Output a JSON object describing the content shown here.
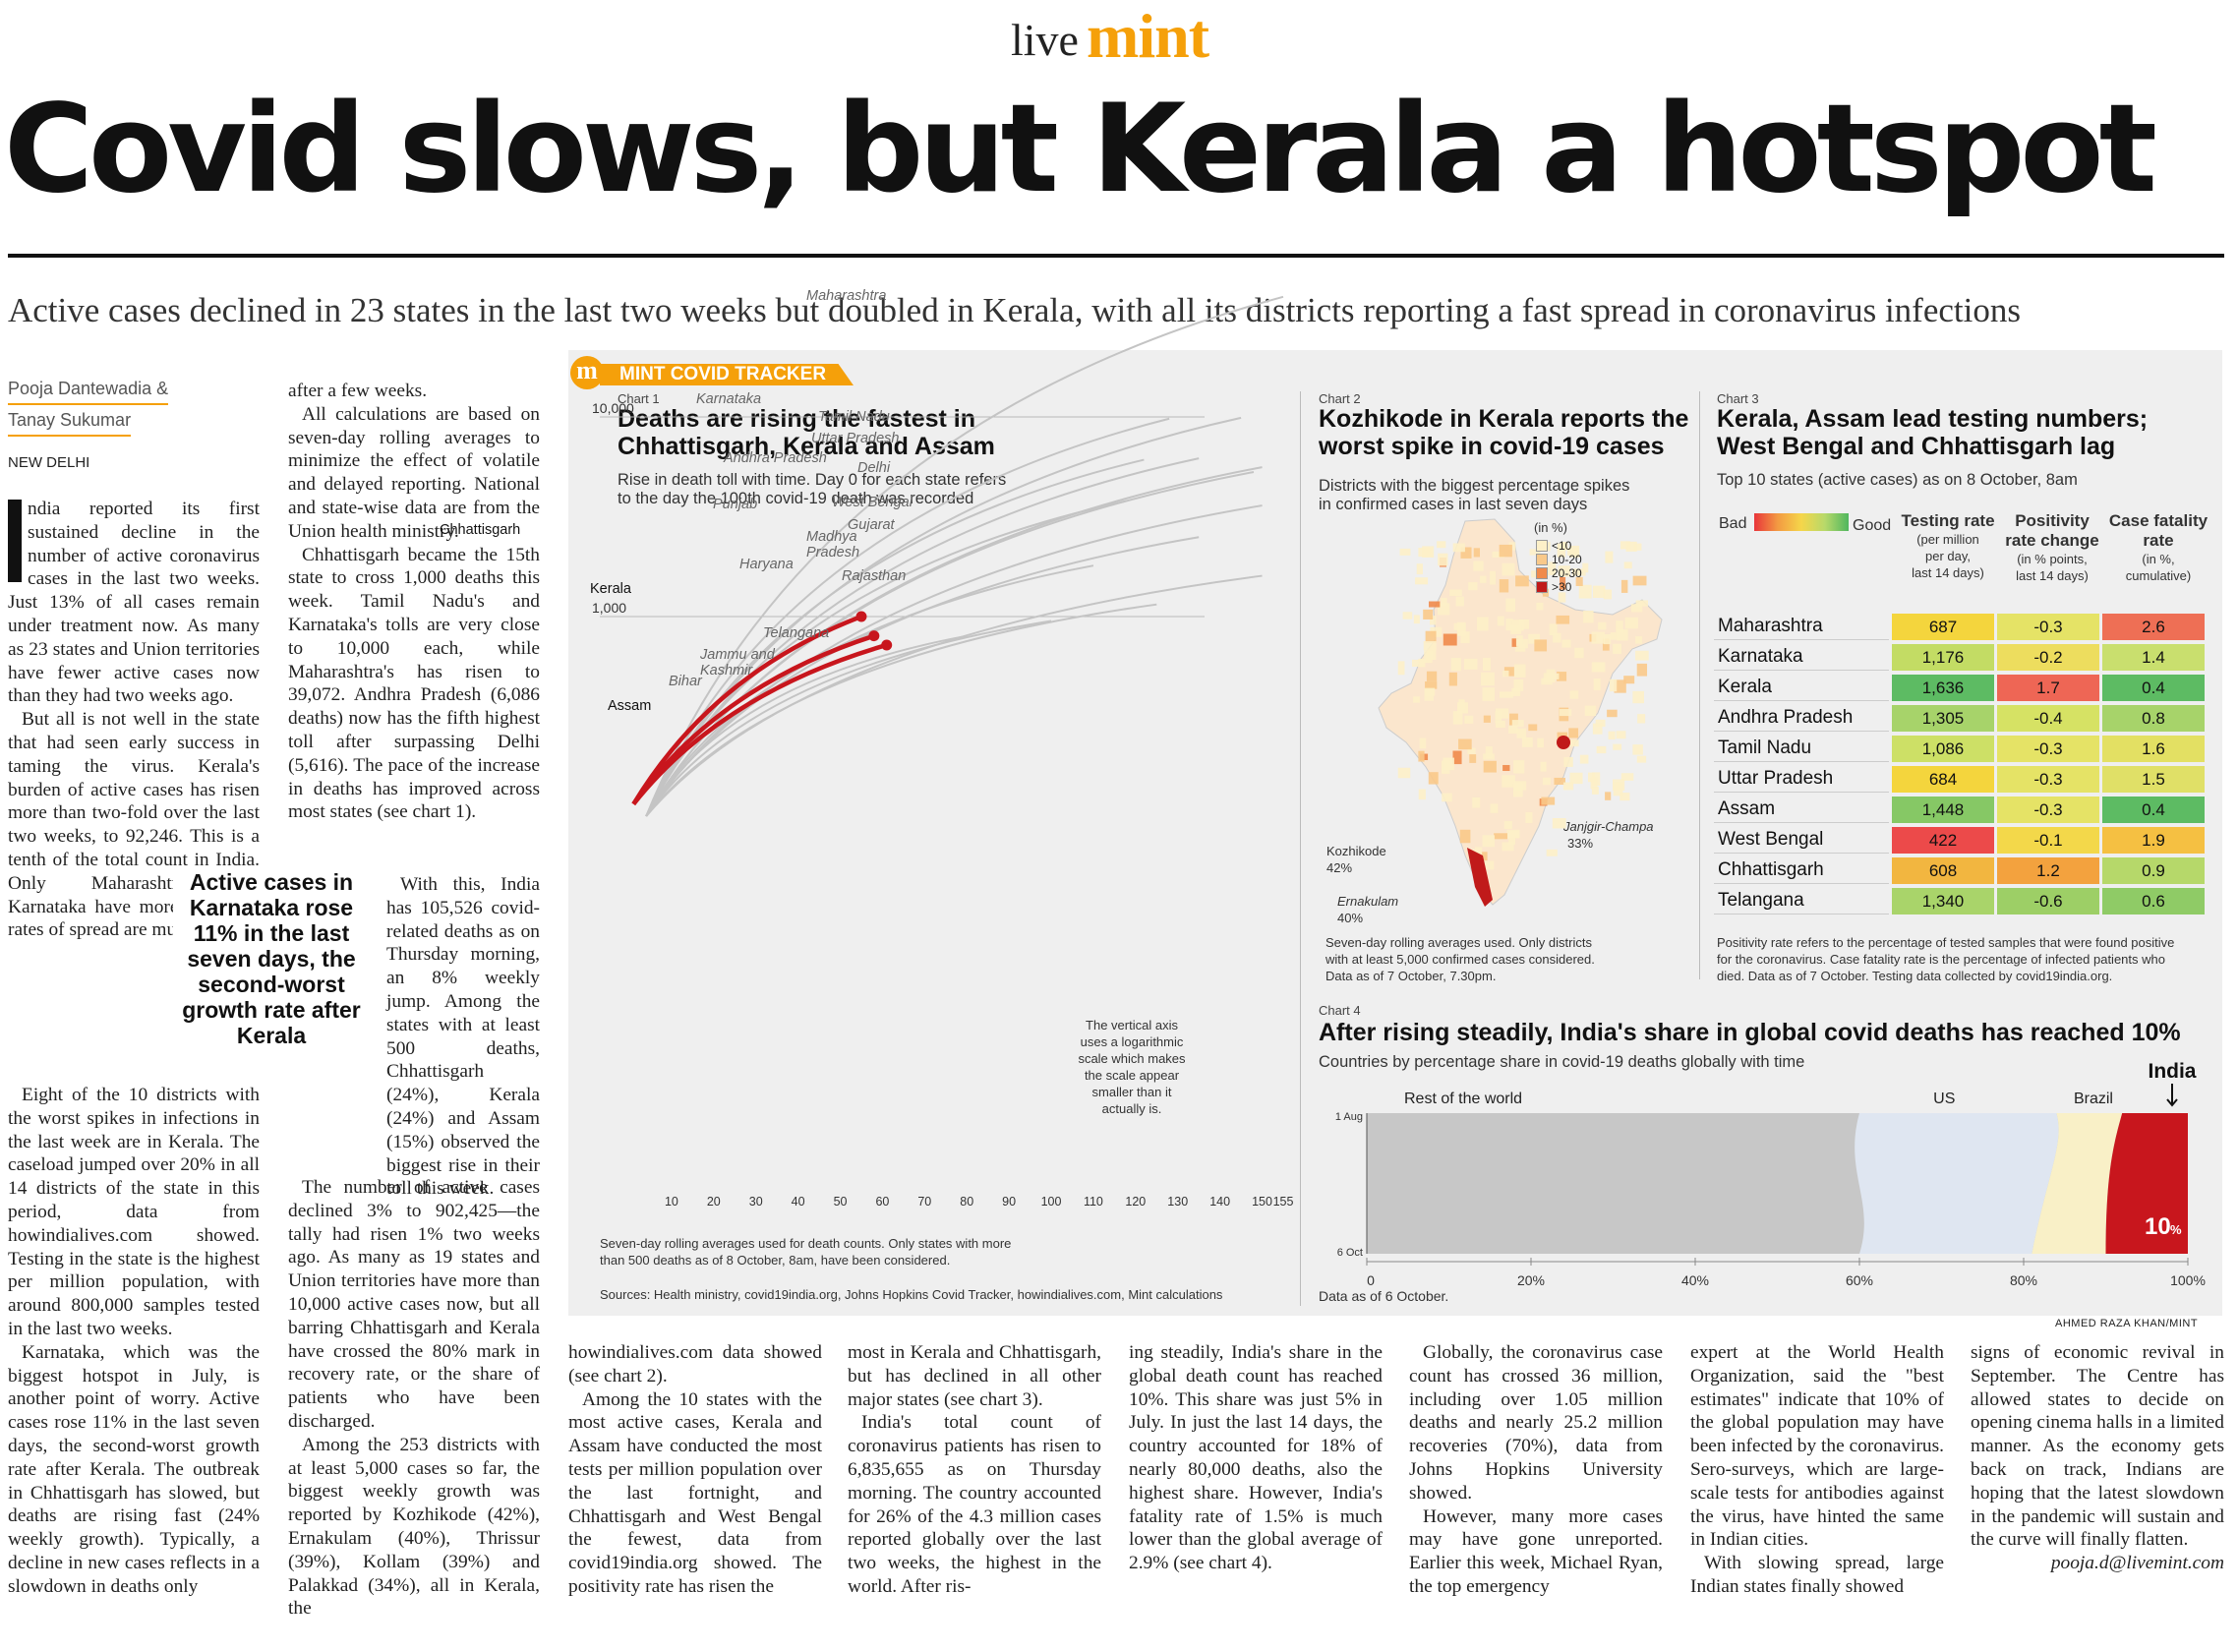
{
  "masthead": {
    "live": "live",
    "mint": "mint"
  },
  "headline": "Covid slows, but Kerala a hotspot",
  "deck": "Active cases declined in 23 states in the last two weeks but doubled in Kerala, with all its districts reporting a fast spread in coronavirus infections",
  "byline": {
    "author1": "Pooja Dantewadia &",
    "author2": "Tanay Sukumar",
    "dateline": "NEW DELHI"
  },
  "pull_quote": "Active cases in Karnataka rose 11% in the last seven days, the second-worst growth rate after Kerala",
  "tracker_label": "MINT COVID TRACKER",
  "chart1": {
    "label": "Chart 1",
    "title1": "Deaths are rising the fastest in",
    "title2": "Chhattisgarh, Kerala and Assam",
    "sub1": "Rise in death toll with time. Day 0 for each state refers",
    "sub2": "to the day the 100th covid-19 death was recorded",
    "note1": "The vertical axis",
    "note2": "uses a logarithmic",
    "note3": "scale which makes",
    "note4": "the scale appear",
    "note5": "smaller than it",
    "note6": "actually is.",
    "foot1": "Seven-day rolling averages used for death counts. Only states with more",
    "foot2": "than 500 deaths as of 8 October, 8am, have been considered.",
    "sources": "Sources: Health ministry, covid19india.org, Johns Hopkins Covid Tracker, howindialives.com, Mint calculations"
  },
  "chart2": {
    "label": "Chart 2",
    "title1": "Kozhikode in Kerala reports the",
    "title2": "worst spike in covid-19 cases",
    "sub1": "Districts with the biggest percentage spikes",
    "sub2": "in confirmed cases in last seven days",
    "legend_title": "(in %)",
    "legend": [
      {
        "label": "<10",
        "color": "#fdf0c8"
      },
      {
        "label": "10-20",
        "color": "#f9c98a"
      },
      {
        "label": "20-30",
        "color": "#f08a4b"
      },
      {
        "label": ">30",
        "color": "#c01a1a"
      }
    ],
    "callouts": [
      {
        "name": "Kozhikode",
        "pct": "42%"
      },
      {
        "name": "Ernakulam",
        "pct": "40%"
      },
      {
        "name": "Janjgir-Champa",
        "pct": "33%"
      }
    ],
    "foot1": "Seven-day rolling averages used. Only districts",
    "foot2": "with at least 5,000 confirmed cases considered.",
    "foot3": "Data as of 7 October, 7.30pm."
  },
  "chart3": {
    "label": "Chart 3",
    "title1": "Kerala, Assam lead testing numbers;",
    "title2": "West Bengal and Chhattisgarh lag",
    "sub": "Top 10 states (active cases) as on 8 October, 8am",
    "scale_bad": "Bad",
    "scale_good": "Good",
    "headers": [
      {
        "h": "Testing rate",
        "s1": "(per million",
        "s2": "per day,",
        "s3": "last 14 days)"
      },
      {
        "h": "Positivity rate change",
        "s1": "(in % points,",
        "s2": "last 14 days)",
        "s3": ""
      },
      {
        "h": "Case fatality rate",
        "s1": "(in %,",
        "s2": "cumulative)",
        "s3": ""
      }
    ],
    "rows": [
      {
        "state": "Maharashtra",
        "c1": "687",
        "c2": "-0.3",
        "c3": "2.6",
        "k1": "#f4d53d",
        "k2": "#e5e366",
        "k3": "#ee6f55"
      },
      {
        "state": "Karnataka",
        "c1": "1,176",
        "c2": "-0.2",
        "c3": "1.4",
        "k1": "#c3dc64",
        "k2": "#eddd5e",
        "k3": "#c9df6e"
      },
      {
        "state": "Kerala",
        "c1": "1,636",
        "c2": "1.7",
        "c3": "0.4",
        "k1": "#5dbb63",
        "k2": "#ee6655",
        "k3": "#5dbb63"
      },
      {
        "state": "Andhra Pradesh",
        "c1": "1,305",
        "c2": "-0.4",
        "c3": "0.8",
        "k1": "#a7d36a",
        "k2": "#d6e264",
        "k3": "#a7d36a"
      },
      {
        "state": "Tamil Nadu",
        "c1": "1,086",
        "c2": "-0.3",
        "c3": "1.6",
        "k1": "#cde066",
        "k2": "#e5e366",
        "k3": "#e3e063"
      },
      {
        "state": "Uttar Pradesh",
        "c1": "684",
        "c2": "-0.3",
        "c3": "1.5",
        "k1": "#f4d53d",
        "k2": "#e5e366",
        "k3": "#e0e067"
      },
      {
        "state": "Assam",
        "c1": "1,448",
        "c2": "-0.3",
        "c3": "0.4",
        "k1": "#86c865",
        "k2": "#e5e366",
        "k3": "#5dbb63"
      },
      {
        "state": "West Bengal",
        "c1": "422",
        "c2": "-0.1",
        "c3": "1.9",
        "k1": "#ec4a4a",
        "k2": "#f3d84a",
        "k3": "#f5c042"
      },
      {
        "state": "Chhattisgarh",
        "c1": "608",
        "c2": "1.2",
        "c3": "0.9",
        "k1": "#f2b640",
        "k2": "#f3a23e",
        "k3": "#b6d86a"
      },
      {
        "state": "Telangana",
        "c1": "1,340",
        "c2": "-0.6",
        "c3": "0.6",
        "k1": "#a9d46a",
        "k2": "#9dcf66",
        "k3": "#8fcb66"
      }
    ],
    "foot1": "Positivity rate refers to the percentage of tested samples that were found positive",
    "foot2": "for the coronavirus. Case fatality rate is the percentage of infected patients who",
    "foot3": "died. Data as of 7 October. Testing data collected by covid19india.org."
  },
  "chart4": {
    "label": "Chart 4",
    "title": "After rising steadily, India's share in global covid deaths has reached 10%",
    "sub": "Countries by percentage share in covid-19 deaths globally with time",
    "rest": "Rest of the world",
    "us": "US",
    "brazil": "Brazil",
    "india": "India",
    "india_pct": "10",
    "pct_sign": "%",
    "y_top": "1 Aug",
    "y_bottom": "6 Oct",
    "foot": "Data as of 6 October.",
    "credit": "AHMED RAZA KHAN/MINT"
  },
  "chart_data": [
    {
      "type": "line",
      "title": "Deaths are rising the fastest in Chhattisgarh, Kerala and Assam",
      "xlabel": "",
      "ylabel": "",
      "x_ticks": [
        "10",
        "20",
        "30",
        "40",
        "50",
        "60",
        "70",
        "80",
        "90",
        "100",
        "110",
        "120",
        "130",
        "140",
        "150",
        "155"
      ],
      "y_ticks": [
        "1,000",
        "10,000"
      ],
      "y_scale": "log",
      "xlim": [
        0,
        155
      ],
      "series_labels": [
        "Maharashtra",
        "Karnataka",
        "Tamil Nadu",
        "Uttar Pradesh",
        "Andhra Pradesh",
        "Delhi",
        "West Bengal",
        "Punjab",
        "Gujarat",
        "Madhya Pradesh",
        "Chhattisgarh",
        "Haryana",
        "Rajasthan",
        "Kerala",
        "Telangana",
        "Jammu and Kashmir",
        "Bihar",
        "Assam"
      ],
      "highlighted": [
        "Chhattisgarh",
        "Kerala",
        "Assam"
      ]
    },
    {
      "type": "area",
      "title": "After rising steadily, India's share in global covid deaths has reached 10%",
      "x_ticks": [
        "0",
        "20%",
        "40%",
        "60%",
        "80%",
        "100%"
      ],
      "y_ticks": [
        "1 Aug",
        "6 Oct"
      ],
      "series": [
        {
          "name": "Rest of the world",
          "value_end": "60"
        },
        {
          "name": "US",
          "value_end": "20"
        },
        {
          "name": "Brazil",
          "value_end": "10"
        },
        {
          "name": "India",
          "value_end": "10"
        }
      ]
    }
  ],
  "article": {
    "c1": [
      "ndia reported its first sustained decline in the number of active coronavirus cases in the last two weeks. Just 13% of all cases remain under treatment now. As many as 23 states and Union territories have fewer active cases now than they had two weeks ago.",
      "But all is not well in the state that had seen early success in taming the virus. Kerala's burden of active cases has risen more than two-fold over the last two weeks, to 92,246. This is a tenth of the total count in India. Only Maharashtra and Karnataka have more, but their rates of spread are much slower.",
      "Eight of the 10 districts with the worst spikes in infections in the last week are in Kerala. The caseload jumped over 20% in all 14 districts of the state in this period, data from howindialives.com showed. Testing in the state is the highest per million population, with around 800,000 samples tested in the last two weeks.",
      "Karnataka, which was the biggest hotspot in July, is another point of worry. Active cases rose 11% in the last seven days, the second-worst growth rate after Kerala. The outbreak in Chhattisgarh has slowed, but deaths are rising fast (24% weekly growth). Typically, a decline in new cases reflects in a slowdown in deaths only"
    ],
    "c2": [
      "after a few weeks.",
      "All calculations are based on seven-day rolling averages to minimize the effect of volatile and delayed reporting. National and state-wise data are from the Union health ministry.",
      "Chhattisgarh became the 15th state to cross 1,000 deaths this week. Tamil Nadu's and Karnataka's tolls are very close to 10,000 each, while Maharashtra's has risen to 39,072. Andhra Pradesh (6,086 deaths) now has the fifth highest toll after surpassing Delhi (5,616). The pace of the increase in deaths has improved across most states (see chart 1).",
      "With this, India has 105,526 covid-related deaths as on Thursday morning, an 8% weekly jump. Among the states with at least 500 deaths, Chhattisgarh (24%), Kerala (24%) and Assam (15%) observed the biggest rise in their toll this week.",
      "The number of active cases declined 3% to 902,425—the tally had risen 1% two weeks ago. As many as 19 states and Union territories have more than 10,000 active cases now, but all barring Chhattisgarh and Kerala have crossed the 80% mark in recovery rate, or the share of patients who have been discharged.",
      "Among the 253 districts with at least 5,000 cases so far, the biggest weekly growth was reported by Kozhikode (42%), Ernakulam (40%), Thrissur (39%), Kollam (39%) and Palakkad (34%), all in Kerala, the"
    ],
    "c3": [
      "howindialives.com data showed (see chart 2).",
      "Among the 10 states with the most active cases, Kerala and Assam have conducted the most tests per million population over the last fortnight, and Chhattisgarh and West Bengal the fewest, data from covid19india.org showed. The positivity rate has risen the"
    ],
    "c4": [
      "most in Kerala and Chhattisgarh, but has declined in all other major states (see chart 3).",
      "India's total count of coronavirus patients has risen to 6,835,655 as on Thursday morning. The country accounted for 26% of the 4.3 million cases reported globally over the last two weeks, the highest in the world. After ris-"
    ],
    "c5": [
      "ing steadily, India's share in the global death count has reached 10%. This share was just 5% in July. In just the last 14 days, the country accounted for 18% of nearly 80,000 deaths, also the highest share. However, India's fatality rate of 1.5% is much lower than the global average of 2.9% (see chart 4)."
    ],
    "c6": [
      "Globally, the coronavirus case count has crossed 36 million, including over 1.05 million deaths and nearly 25.2 million recoveries (70%), data from Johns Hopkins University showed.",
      "However, many more cases may have gone unreported. Earlier this week, Michael Ryan, the top emergency"
    ],
    "c7": [
      "expert at the World Health Organization, said the \"best estimates\" indicate that 10% of the global population may have been infected by the coronavirus. Sero-surveys, which are large-scale tests for antibodies against the virus, have hinted the same in Indian cities.",
      "With slowing spread, large Indian states finally showed"
    ],
    "c8": [
      "signs of economic revival in September. The Centre has allowed states to decide on opening cinema halls in a limited manner. As the economy gets back on track, Indians are hoping that the latest slowdown in the pandemic will sustain and the curve will finally flatten."
    ],
    "signoff": "pooja.d@livemint.com"
  }
}
